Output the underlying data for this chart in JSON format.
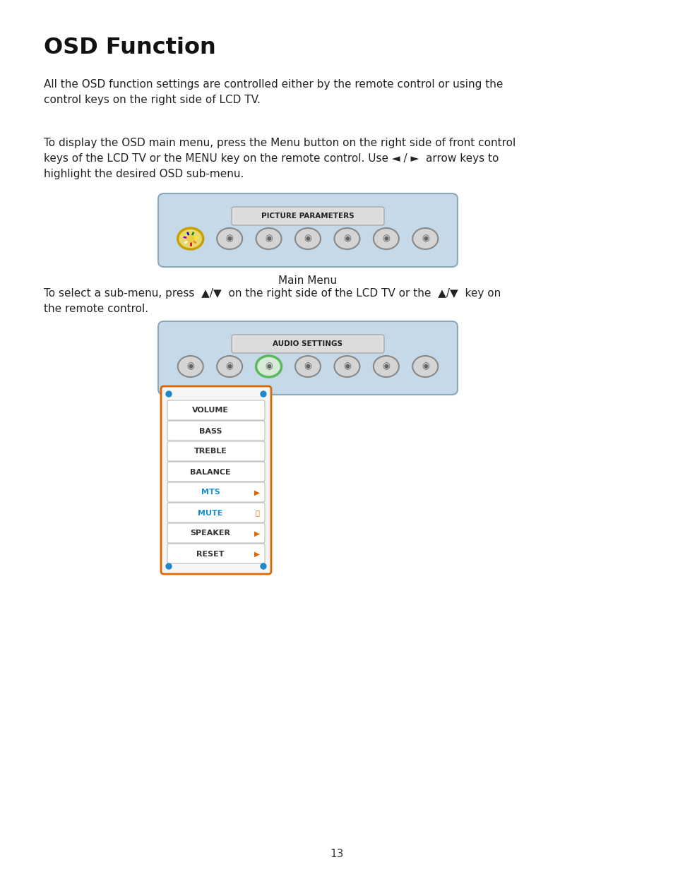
{
  "title": "OSD Function",
  "para1": "All the OSD function settings are controlled either by the remote control or using the\ncontrol keys on the right side of LCD TV.",
  "para2": "To display the OSD main menu, press the Menu button on the right side of front control\nkeys of the LCD TV or the MENU key on the remote control. Use ◄ / ►  arrow keys to\nhighlight the desired OSD sub-menu.",
  "para3": "To select a sub-menu, press  ▲/▼  on the right side of the LCD TV or the  ▲/▼  key on\nthe remote control.",
  "main_menu_label": "Main Menu",
  "menu1_title": "PICTURE PARAMETERS",
  "menu2_title": "AUDIO SETTINGS",
  "menu_bg": "#c5d9e8",
  "menu_border": "#8aaabb",
  "title_box_bg": "#dcdcdc",
  "title_box_border": "#aaaaaa",
  "submenu_items": [
    "VOLUME",
    "BASS",
    "TREBLE",
    "BALANCE",
    "MTS",
    "MUTE",
    "SPEAKER",
    "RESET"
  ],
  "submenu_colors": [
    "#333333",
    "#333333",
    "#333333",
    "#333333",
    "#1a90d0",
    "#1a90d0",
    "#333333",
    "#333333"
  ],
  "submenu_has_arrow": [
    false,
    false,
    false,
    false,
    true,
    false,
    true,
    true
  ],
  "submenu_has_speaker": [
    false,
    false,
    false,
    false,
    false,
    true,
    false,
    false
  ],
  "submenu_outer_border": "#dd6600",
  "page_number": "13",
  "background_color": "#ffffff"
}
